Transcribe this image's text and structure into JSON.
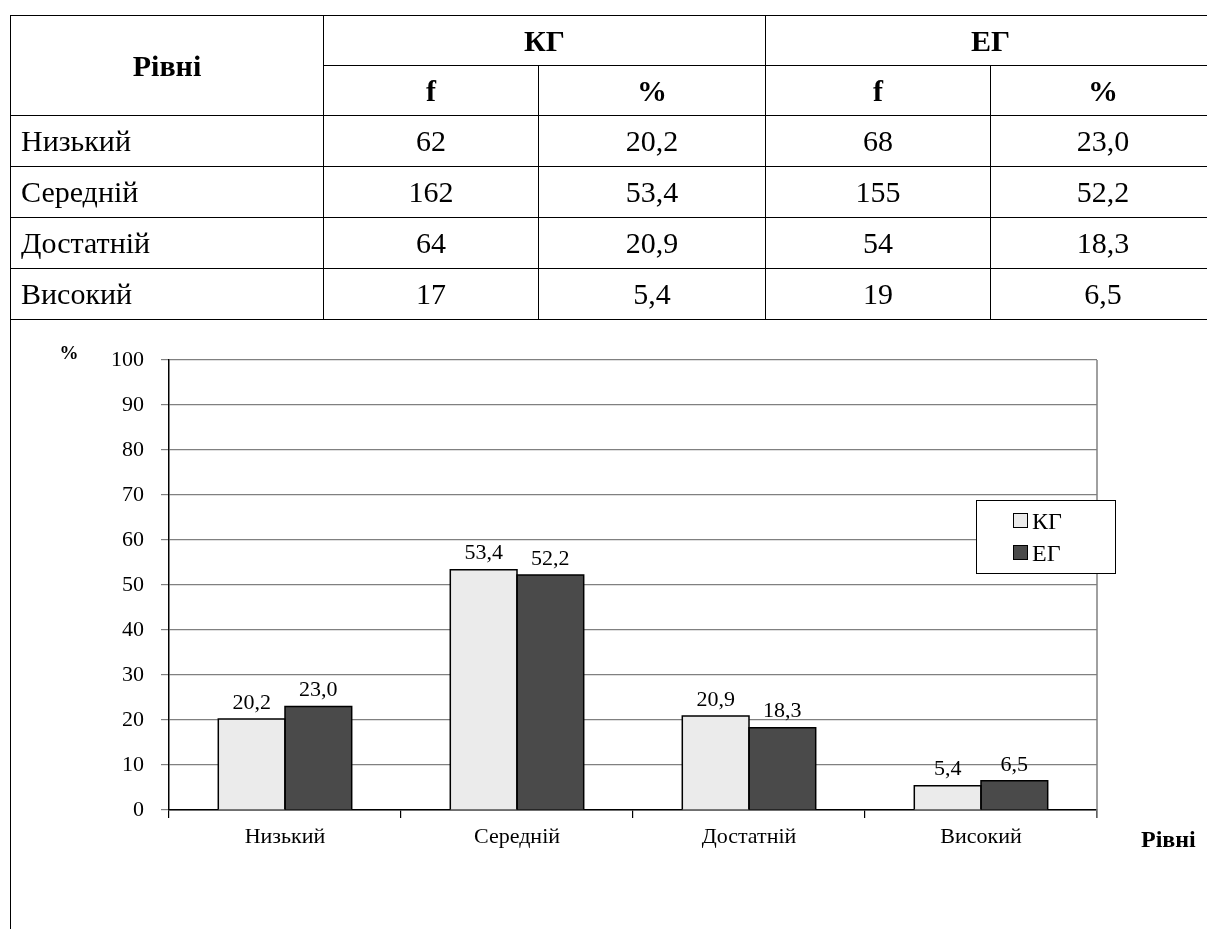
{
  "chart_data": [
    {
      "type": "other",
      "xlabel": "Рівні",
      "annotations": [
        "КГ",
        "ЕГ"
      ],
      "categories": [
        "Низький",
        "Середній",
        "Достатній",
        "Високий"
      ],
      "series": [
        {
          "name": "f",
          "values": [
            62,
            162,
            64,
            17
          ],
          "value_labels": [
            "62",
            "162",
            "64",
            "17"
          ]
        },
        {
          "name": "%",
          "values": [
            20.2,
            53.4,
            20.9,
            5.4
          ],
          "value_labels": [
            "20,2",
            "53,4",
            "20,9",
            "5,4"
          ]
        },
        {
          "name": "f",
          "values": [
            68,
            155,
            54,
            19
          ],
          "value_labels": [
            "68",
            "155",
            "54",
            "19"
          ]
        },
        {
          "name": "%",
          "values": [
            23.0,
            52.2,
            18.3,
            6.5
          ],
          "value_labels": [
            "23,0",
            "52,2",
            "18,3",
            "6,5"
          ]
        }
      ]
    },
    {
      "type": "bar",
      "xlabel": "Рівні",
      "ylabel": "%",
      "categories": [
        "Низький",
        "Середній",
        "Достатній",
        "Високий"
      ],
      "series": [
        {
          "name": "КГ",
          "color": "#ebebeb",
          "values": [
            20.2,
            53.4,
            20.9,
            5.4
          ],
          "value_labels": [
            "20,2",
            "53,4",
            "20,9",
            "5,4"
          ]
        },
        {
          "name": "ЕГ",
          "color": "#4a4a4a",
          "values": [
            23.0,
            52.2,
            18.3,
            6.5
          ],
          "value_labels": [
            "23,0",
            "52,2",
            "18,3",
            "6,5"
          ]
        }
      ],
      "ylim": [
        0,
        100
      ],
      "yticks": [
        0,
        10,
        20,
        30,
        40,
        50,
        60,
        70,
        80,
        90,
        100
      ],
      "grid": "y",
      "legend": "right"
    }
  ]
}
